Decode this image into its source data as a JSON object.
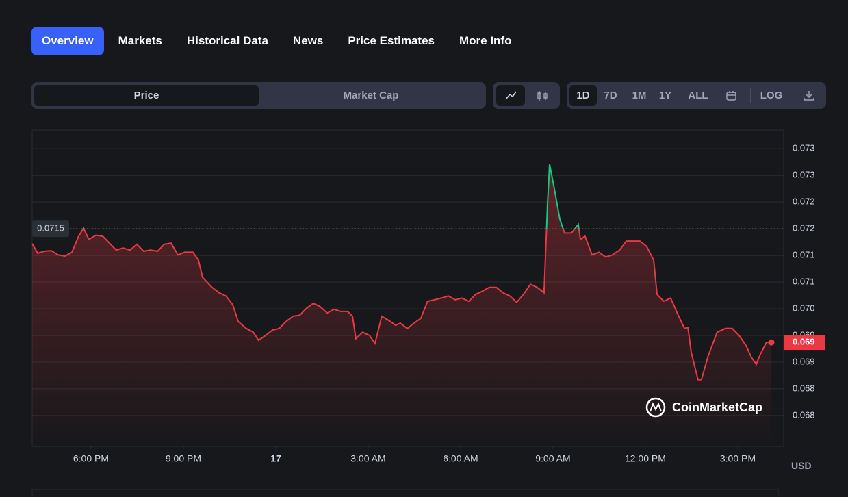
{
  "tabs": [
    "Overview",
    "Markets",
    "Historical Data",
    "News",
    "Price Estimates",
    "More Info"
  ],
  "toggle": [
    "Price",
    "Market Cap"
  ],
  "ranges": [
    "1D",
    "7D",
    "1M",
    "1Y",
    "ALL"
  ],
  "log_button": "LOG",
  "watermark": "CoinMarketCap",
  "currency": "USD",
  "chart_data": {
    "type": "line",
    "color": "#ea3943",
    "above_color": "#16c784",
    "reference": 0.0715,
    "current_price": {
      "value": 0.06937,
      "label": "0.069"
    },
    "xlim": [
      -7.91,
      16.49
    ],
    "ylim": [
      0.06742,
      0.07335
    ],
    "grid": true,
    "xticks": [
      {
        "value": -6,
        "label": "6:00 PM"
      },
      {
        "value": -3,
        "label": "9:00 PM"
      },
      {
        "value": 0,
        "label": "17"
      },
      {
        "value": 3,
        "label": "3:00 AM"
      },
      {
        "value": 6,
        "label": "6:00 AM"
      },
      {
        "value": 9,
        "label": "9:00 AM"
      },
      {
        "value": 12,
        "label": "12:00 PM"
      },
      {
        "value": 15,
        "label": "3:00 PM"
      }
    ],
    "yticks": [
      0.073,
      {
        "value": 0.0725,
        "label": "0.073"
      },
      0.072,
      {
        "value": 0.0715,
        "label": "0.072"
      },
      0.071,
      {
        "value": 0.0705,
        "label": "0.071"
      },
      {
        "value": 0.07,
        "label": "0.070"
      },
      {
        "value": 0.0695,
        "label": "0.069"
      },
      0.069,
      {
        "value": 0.0685,
        "label": "0.068"
      },
      0.068
    ],
    "x": [
      -7.91,
      -7.73,
      -7.51,
      -7.29,
      -7.07,
      -6.84,
      -6.62,
      -6.4,
      -6.24,
      -6.07,
      -5.84,
      -5.62,
      -5.4,
      -5.18,
      -4.96,
      -4.73,
      -4.51,
      -4.29,
      -4.07,
      -3.84,
      -3.62,
      -3.4,
      -3.18,
      -2.96,
      -2.69,
      -2.51,
      -2.38,
      -2.07,
      -1.84,
      -1.62,
      -1.4,
      -1.22,
      -0.96,
      -0.73,
      -0.56,
      -0.33,
      -0.11,
      0.11,
      0.33,
      0.56,
      0.78,
      1,
      1.22,
      1.44,
      1.67,
      1.89,
      2.11,
      2.33,
      2.49,
      2.6,
      2.82,
      3.04,
      3.22,
      3.44,
      3.67,
      3.89,
      4.04,
      4.27,
      4.49,
      4.71,
      4.93,
      5.16,
      5.38,
      5.6,
      5.82,
      6.04,
      6.27,
      6.49,
      6.71,
      6.93,
      7.16,
      7.38,
      7.6,
      7.82,
      8.04,
      8.27,
      8.49,
      8.71,
      8.82,
      8.89,
      9.04,
      9.22,
      9.38,
      9.6,
      9.82,
      9.89,
      10.04,
      10.27,
      10.49,
      10.71,
      10.93,
      11.16,
      11.38,
      11.6,
      11.82,
      12.04,
      12.27,
      12.38,
      12.6,
      12.82,
      13.04,
      13.27,
      13.38,
      13.49,
      13.71,
      13.82,
      14.04,
      14.33,
      14.6,
      14.82,
      15.04,
      15.27,
      15.44,
      15.6,
      15.71,
      15.93,
      16.09
    ],
    "values": [
      0.07122,
      0.07104,
      0.07108,
      0.07109,
      0.07101,
      0.07099,
      0.07106,
      0.07136,
      0.07151,
      0.0713,
      0.07138,
      0.07136,
      0.07123,
      0.0711,
      0.07114,
      0.0711,
      0.07121,
      0.07108,
      0.0711,
      0.07108,
      0.07121,
      0.07123,
      0.07101,
      0.07106,
      0.07106,
      0.07091,
      0.07059,
      0.0704,
      0.0703,
      0.07024,
      0.07008,
      0.06976,
      0.06963,
      0.06956,
      0.06941,
      0.0695,
      0.0696,
      0.06963,
      0.06976,
      0.06986,
      0.06988,
      0.07001,
      0.0701,
      0.07004,
      0.06992,
      0.06999,
      0.06995,
      0.06995,
      0.06986,
      0.06944,
      0.06956,
      0.0695,
      0.06935,
      0.06986,
      0.06978,
      0.06969,
      0.06973,
      0.06963,
      0.06973,
      0.06982,
      0.07014,
      0.07017,
      0.0702,
      0.07024,
      0.07017,
      0.0702,
      0.07014,
      0.07027,
      0.07033,
      0.0704,
      0.0704,
      0.0703,
      0.07024,
      0.07012,
      0.07027,
      0.07046,
      0.0704,
      0.0703,
      0.07194,
      0.07271,
      0.07226,
      0.07168,
      0.07142,
      0.07142,
      0.07158,
      0.0713,
      0.07136,
      0.07101,
      0.07106,
      0.07097,
      0.07101,
      0.0711,
      0.07127,
      0.07127,
      0.07127,
      0.07117,
      0.07091,
      0.07027,
      0.07014,
      0.0702,
      0.06991,
      0.06963,
      0.06965,
      0.06918,
      0.06867,
      0.06867,
      0.06912,
      0.06956,
      0.06963,
      0.06963,
      0.0695,
      0.06931,
      0.06909,
      0.06896,
      0.06912,
      0.06937,
      0.06937
    ]
  }
}
